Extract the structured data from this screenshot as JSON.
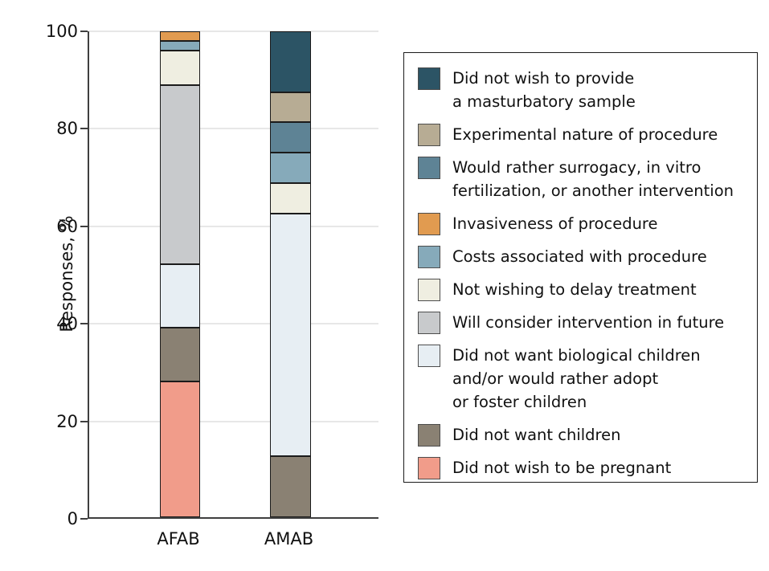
{
  "figure": {
    "background": "#ffffff",
    "axis_color": "#3f3f3f",
    "gridline_color": "#e7e7e7",
    "segment_border_color": "#1b1b1b"
  },
  "chart_data": {
    "type": "bar",
    "subtype": "stacked-100-percent",
    "title": "",
    "xlabel": "",
    "ylabel": "Responses, %",
    "ylim": [
      0,
      100
    ],
    "yticks": [
      0,
      20,
      40,
      60,
      80,
      100
    ],
    "grid": "horizontal",
    "legend_position": "right",
    "categories": [
      "AFAB",
      "AMAB"
    ],
    "series": [
      {
        "name": "Did not wish to provide a masturbatory sample",
        "legend_lines": [
          "Did not wish to provide",
          "a masturbatory sample"
        ],
        "color": "#2c5465",
        "values": [
          0,
          12.5
        ]
      },
      {
        "name": "Experimental nature of procedure",
        "legend_lines": [
          "Experimental nature of procedure"
        ],
        "color": "#b7ac94",
        "values": [
          0,
          6.25
        ]
      },
      {
        "name": "Would rather surrogacy, in vitro fertilization, or another intervention",
        "legend_lines": [
          "Would rather surrogacy, in vitro",
          "fertilization, or another intervention"
        ],
        "color": "#5e8395",
        "values": [
          0,
          6.25
        ]
      },
      {
        "name": "Invasiveness of procedure",
        "legend_lines": [
          "Invasiveness of procedure"
        ],
        "color": "#e19b50",
        "values": [
          2,
          0
        ]
      },
      {
        "name": "Costs associated with procedure",
        "legend_lines": [
          "Costs associated with procedure"
        ],
        "color": "#86aaba",
        "values": [
          2,
          6.25
        ]
      },
      {
        "name": "Not wishing to delay treatment",
        "legend_lines": [
          "Not wishing to delay treatment"
        ],
        "color": "#efeee1",
        "values": [
          7,
          6.25
        ]
      },
      {
        "name": "Will consider intervention in future",
        "legend_lines": [
          "Will consider intervention in future"
        ],
        "color": "#c8cacc",
        "values": [
          37,
          0
        ]
      },
      {
        "name": "Did not want biological children and/or would rather adopt or foster children",
        "legend_lines": [
          "Did not want biological children",
          "and/or would rather adopt",
          "or foster children"
        ],
        "color": "#e7eef3",
        "values": [
          13,
          50
        ]
      },
      {
        "name": "Did not want children",
        "legend_lines": [
          "Did not want children"
        ],
        "color": "#8a8173",
        "values": [
          11,
          12.5
        ]
      },
      {
        "name": "Did not wish to be pregnant",
        "legend_lines": [
          "Did not wish to be pregnant"
        ],
        "color": "#f19c8a",
        "values": [
          28,
          0
        ]
      }
    ]
  }
}
